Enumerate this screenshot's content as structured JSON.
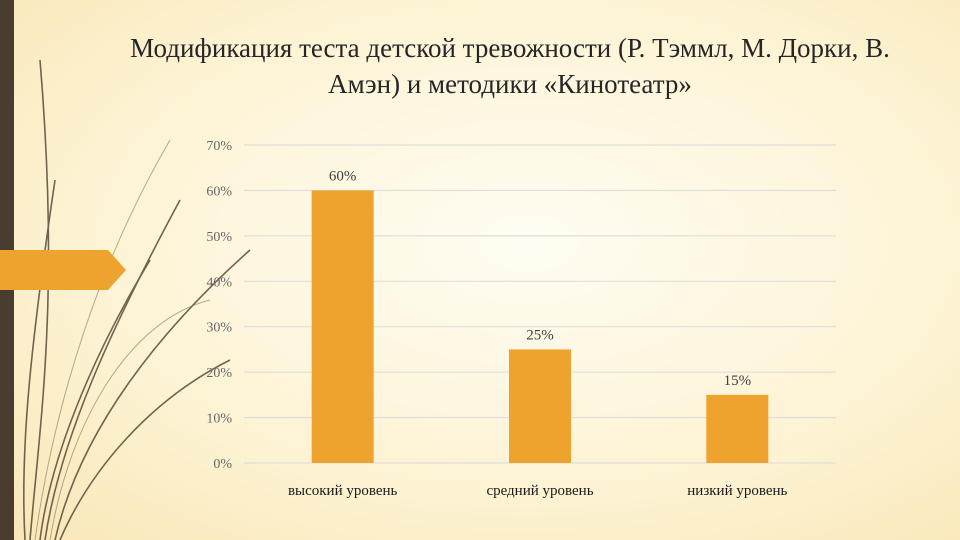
{
  "title": "Модификация теста детской тревожности (Р. Тэммл, М. Дорки, В. Амэн) и методики «Кинотеатр»",
  "colors": {
    "bar": "#eda32d",
    "accent": "#eda32d",
    "sidebar": "#4a3c2e",
    "grid": "#d9d9d9"
  },
  "chart_data": {
    "type": "bar",
    "categories": [
      "высокий уровень",
      "средний уровень",
      "низкий уровень"
    ],
    "values": [
      60,
      25,
      15
    ],
    "data_labels": [
      "60%",
      "25%",
      "15%"
    ],
    "y_ticks": [
      "0%",
      "10%",
      "20%",
      "30%",
      "40%",
      "50%",
      "60%",
      "70%"
    ],
    "ylim": [
      0,
      70
    ],
    "grid": true,
    "title": "",
    "xlabel": "",
    "ylabel": ""
  }
}
